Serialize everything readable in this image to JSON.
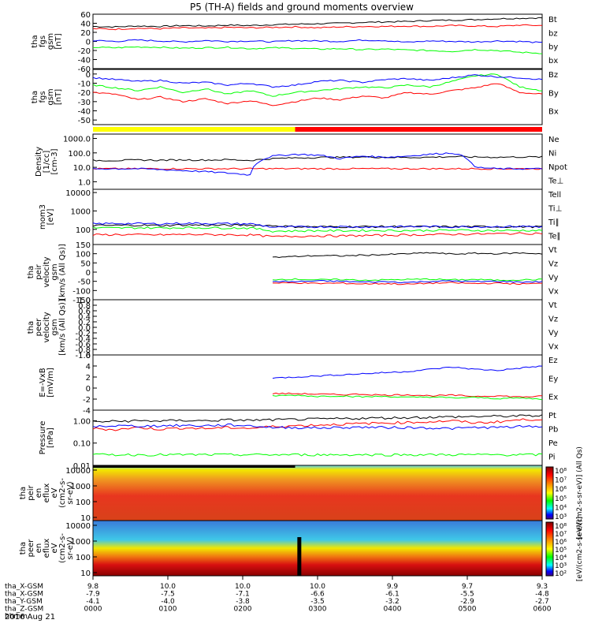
{
  "title": "P5 (TH-A) fields and ground moments overview",
  "date_label": "2016 Aug 21",
  "colors": {
    "black": "#000000",
    "red": "#ff0000",
    "green": "#00ff00",
    "blue": "#0000ff",
    "yellow": "#ffff00"
  },
  "xaxis": {
    "tick_fracs": [
      0,
      0.2,
      0.4,
      0.6,
      0.8,
      1.0
    ],
    "rows": [
      {
        "label": "tha_X-GSM",
        "values": [
          "9.8",
          "10.0",
          "10.0",
          "10.0",
          "9.9",
          "9.7",
          "9.3"
        ]
      },
      {
        "label": "tha_X-GSM",
        "values": [
          "-7.9",
          "-7.5",
          "-7.1",
          "-6.6",
          "-6.1",
          "-5.5",
          "-4.8"
        ]
      },
      {
        "label": "tha_Y-GSM",
        "values": [
          "-4.1",
          "-4.0",
          "-3.8",
          "-3.5",
          "-3.2",
          "-2.9",
          "-2.7"
        ]
      },
      {
        "label": "tha_Z-GSM",
        "values": [
          "0000",
          "0100",
          "0200",
          "0300",
          "0400",
          "0500",
          "0600"
        ]
      }
    ],
    "last_row_label": "hhmm"
  },
  "chart_data": [
    {
      "type": "line",
      "id": "p1",
      "ylabel_lines": [
        "tha",
        "fgs",
        "gsm",
        "[nT]"
      ],
      "ylim": [
        -60,
        60
      ],
      "ticks": [
        "60",
        "40",
        "20",
        "0",
        "-20",
        "-40",
        "-60"
      ],
      "tick_vals": [
        60,
        40,
        20,
        0,
        -20,
        -40,
        -60
      ],
      "series": [
        {
          "name": "Bt",
          "color": "black",
          "values": [
            33,
            32,
            34,
            33,
            35,
            34,
            36,
            35,
            37,
            38,
            39,
            40,
            42,
            43,
            44,
            46,
            47,
            48,
            50,
            51,
            52
          ]
        },
        {
          "name": "bz",
          "color": "red",
          "values": [
            28,
            27,
            29,
            28,
            30,
            29,
            31,
            30,
            31,
            32,
            30,
            32,
            33,
            33,
            34,
            33,
            35,
            34,
            33,
            36,
            35
          ]
        },
        {
          "name": "by",
          "color": "blue",
          "values": [
            2,
            0,
            3,
            1,
            -1,
            2,
            0,
            1,
            -1,
            2,
            1,
            0,
            3,
            2,
            -2,
            1,
            0,
            -1,
            1,
            0,
            -3
          ]
        },
        {
          "name": "bx",
          "color": "green",
          "values": [
            -13,
            -14,
            -12,
            -13,
            -15,
            -14,
            -13,
            -16,
            -14,
            -15,
            -17,
            -16,
            -18,
            -17,
            -19,
            -20,
            -22,
            -18,
            -20,
            -24,
            -26
          ]
        }
      ]
    },
    {
      "type": "line",
      "id": "p2",
      "ylabel_lines": [
        "tha",
        "fgs",
        "gsm",
        "[nT]"
      ],
      "ylim": [
        -55,
        5
      ],
      "ticks": [
        "0",
        "-10",
        "-20",
        "-30",
        "-40",
        "-50"
      ],
      "tick_vals": [
        0,
        -10,
        -20,
        -30,
        -40,
        -50
      ],
      "series": [
        {
          "name": "Bz",
          "color": "red",
          "values": [
            -20,
            -22,
            -28,
            -25,
            -30,
            -27,
            -32,
            -29,
            -34,
            -30,
            -26,
            -28,
            -24,
            -26,
            -20,
            -22,
            -18,
            -15,
            -10,
            -20,
            -22
          ]
        },
        {
          "name": "By",
          "color": "green",
          "values": [
            -12,
            -15,
            -18,
            -14,
            -20,
            -16,
            -22,
            -18,
            -24,
            -20,
            -18,
            -16,
            -14,
            -15,
            -12,
            -14,
            -8,
            -2,
            0,
            -14,
            -18
          ]
        },
        {
          "name": "Bx",
          "color": "blue",
          "values": [
            -4,
            -6,
            -8,
            -7,
            -10,
            -9,
            -12,
            -10,
            -14,
            -12,
            -8,
            -7,
            -9,
            -6,
            -5,
            -7,
            -4,
            -1,
            -3,
            -4,
            -6
          ]
        }
      ]
    },
    {
      "type": "line",
      "id": "p3",
      "ylabel_lines": [
        "Density",
        "[1/cc]",
        "[cm-3]"
      ],
      "ylim": [
        0.3,
        2000
      ],
      "log": true,
      "ticks": [
        "1000.0",
        "100.0",
        "10.0",
        "1.0"
      ],
      "tick_vals": [
        1000,
        100,
        10,
        1
      ],
      "series": [
        {
          "name": "Ne",
          "color": "red",
          "values": [
            8,
            8,
            8,
            8,
            8,
            8,
            8,
            8,
            8,
            8,
            8,
            8,
            8,
            8,
            8,
            8,
            8,
            8,
            8,
            8,
            8
          ]
        },
        {
          "name": "Ni",
          "color": "black",
          "values": [
            30,
            30,
            32,
            31,
            33,
            32,
            34,
            30,
            40,
            45,
            48,
            50,
            52,
            50,
            48,
            50,
            55,
            52,
            50,
            52,
            52
          ]
        },
        {
          "name": "Npot",
          "color": "blue",
          "values": [
            8,
            8,
            8,
            7,
            6,
            5,
            4,
            3,
            60,
            80,
            70,
            40,
            60,
            50,
            60,
            80,
            100,
            10,
            8,
            8,
            8
          ]
        },
        {
          "name": "Te⊥",
          "color": "red",
          "values": []
        }
      ]
    },
    {
      "type": "line",
      "id": "p4",
      "ylabel_lines": [
        "mom3",
        "[eV]"
      ],
      "ylim": [
        15,
        15000
      ],
      "log": true,
      "ticks": [
        "10000",
        "1000",
        "100"
      ],
      "tick_vals": [
        10000,
        1000,
        100
      ],
      "series": [
        {
          "name": "Tell",
          "color": "black",
          "values": [
            160,
            165,
            170,
            160,
            175,
            170,
            165,
            170,
            160,
            140,
            140,
            138,
            140,
            142,
            140,
            138,
            140,
            142,
            140,
            138,
            140
          ]
        },
        {
          "name": "Ti⊥",
          "color": "blue",
          "values": [
            200,
            210,
            205,
            200,
            215,
            210,
            205,
            200,
            130,
            135,
            138,
            140,
            136,
            138,
            140,
            142,
            138,
            140,
            142,
            145,
            140
          ]
        },
        {
          "name": "Ti∥",
          "color": "green",
          "values": [
            120,
            118,
            122,
            120,
            124,
            122,
            120,
            118,
            80,
            82,
            85,
            84,
            86,
            88,
            86,
            88,
            90,
            88,
            86,
            88,
            86
          ]
        },
        {
          "name": "Te∥",
          "color": "red",
          "values": [
            50,
            52,
            51,
            50,
            53,
            52,
            51,
            50,
            40,
            42,
            45,
            44,
            46,
            48,
            50,
            52,
            54,
            56,
            58,
            60,
            62
          ]
        }
      ]
    },
    {
      "type": "line",
      "id": "p5",
      "ylabel_lines": [
        "tha",
        "peir",
        "velocity",
        "gsm",
        "[km/s (All Qs)]"
      ],
      "ylim": [
        -150,
        150
      ],
      "ticks": [
        "150",
        "100",
        "50",
        "0",
        "-50",
        "-100",
        "-150"
      ],
      "tick_vals": [
        150,
        100,
        50,
        0,
        -50,
        -100,
        -150
      ],
      "series": [
        {
          "name": "Vt",
          "color": "black",
          "values": [
            null,
            null,
            null,
            null,
            null,
            null,
            null,
            null,
            80,
            85,
            90,
            88,
            92,
            95,
            100,
            105,
            98,
            102,
            100,
            104,
            100
          ]
        },
        {
          "name": "Vz",
          "color": "red",
          "values": [
            null,
            null,
            null,
            null,
            null,
            null,
            null,
            null,
            -60,
            -58,
            -62,
            -60,
            -64,
            -62,
            -66,
            -60,
            -58,
            -62,
            -60,
            -64,
            -62
          ]
        },
        {
          "name": "Vy",
          "color": "green",
          "values": [
            null,
            null,
            null,
            null,
            null,
            null,
            null,
            null,
            -40,
            -38,
            -42,
            -40,
            -44,
            -42,
            -40,
            -38,
            -42,
            -40,
            -44,
            -42,
            -40
          ]
        },
        {
          "name": "Vx",
          "color": "blue",
          "values": [
            null,
            null,
            null,
            null,
            null,
            null,
            null,
            null,
            -50,
            -52,
            -48,
            -50,
            -54,
            -52,
            -56,
            -50,
            -48,
            -52,
            -50,
            -54,
            -52
          ]
        }
      ]
    },
    {
      "type": "line",
      "id": "p6",
      "ylabel_lines": [
        "tha",
        "peer",
        "velocity",
        "gsm",
        "[km/s (All Qs)]"
      ],
      "ylim": [
        -1,
        1
      ],
      "ticks": [
        "1.0",
        "0.8",
        "0.6",
        "0.4",
        "0.2",
        "0.0",
        "-0.2",
        "-0.4",
        "-0.6",
        "-0.8",
        "-1.0"
      ],
      "tick_vals": [
        1,
        0.8,
        0.6,
        0.4,
        0.2,
        0,
        -0.2,
        -0.4,
        -0.6,
        -0.8,
        -1
      ],
      "series": [
        {
          "name": "Vt",
          "color": "black",
          "values": []
        },
        {
          "name": "Vz",
          "color": "red",
          "values": []
        },
        {
          "name": "Vy",
          "color": "green",
          "values": []
        },
        {
          "name": "Vx",
          "color": "blue",
          "values": []
        }
      ]
    },
    {
      "type": "line",
      "id": "p7",
      "ylabel_lines": [
        "E=-VxB",
        "[mV/m]"
      ],
      "ylim": [
        -4,
        6
      ],
      "ticks": [
        "6",
        "4",
        "2",
        "0",
        "-2",
        "-4"
      ],
      "tick_vals": [
        6,
        4,
        2,
        0,
        -2,
        -4
      ],
      "series": [
        {
          "name": "Ez",
          "color": "red",
          "values": [
            null,
            null,
            null,
            null,
            null,
            null,
            null,
            null,
            -1,
            -1,
            -1.1,
            -1.2,
            -1.1,
            -1.3,
            -1.2,
            -1.4,
            -1.3,
            -1.5,
            -1.4,
            -1.6,
            -1.5
          ]
        },
        {
          "name": "Ey",
          "color": "green",
          "values": [
            null,
            null,
            null,
            null,
            null,
            null,
            null,
            null,
            -1.4,
            -1.3,
            -1.5,
            -1.4,
            -1.6,
            -1.5,
            -1.7,
            -1.6,
            -1.8,
            -1.7,
            -1.9,
            -1.8,
            -2
          ]
        },
        {
          "name": "Ex",
          "color": "blue",
          "values": [
            null,
            null,
            null,
            null,
            null,
            null,
            null,
            null,
            1.8,
            2.0,
            2.2,
            2.4,
            2.6,
            2.8,
            3.0,
            3.4,
            3.8,
            3.4,
            3.2,
            3.6,
            4.0
          ]
        }
      ]
    },
    {
      "type": "line",
      "id": "p8",
      "ylabel_lines": [
        "Pressure",
        "[nPa]"
      ],
      "ylim": [
        0.01,
        3
      ],
      "log": true,
      "ticks": [
        "1.00",
        "0.10",
        "0.01"
      ],
      "tick_vals": [
        1,
        0.1,
        0.01
      ],
      "series": [
        {
          "name": "Pt",
          "color": "black",
          "values": [
            0.9,
            0.95,
            1.0,
            0.98,
            1.05,
            1.0,
            1.1,
            1.05,
            1.1,
            1.15,
            1.2,
            1.25,
            1.3,
            1.35,
            1.4,
            1.45,
            1.5,
            1.55,
            1.6,
            1.65,
            1.7
          ]
        },
        {
          "name": "Pb",
          "color": "red",
          "values": [
            0.45,
            0.4,
            0.5,
            0.42,
            0.48,
            0.45,
            0.5,
            0.46,
            0.55,
            0.6,
            0.65,
            0.7,
            0.75,
            0.8,
            0.85,
            0.9,
            1.0,
            0.8,
            0.9,
            1.1,
            1.2
          ]
        },
        {
          "name": "Pe",
          "color": "green",
          "values": [
            0.03,
            0.03,
            0.03,
            0.03,
            0.03,
            0.03,
            0.03,
            0.03,
            0.03,
            0.03,
            0.03,
            0.03,
            0.03,
            0.03,
            0.03,
            0.03,
            0.03,
            0.03,
            0.03,
            0.03,
            0.03
          ]
        },
        {
          "name": "Pi",
          "color": "blue",
          "values": [
            0.55,
            0.6,
            0.58,
            0.6,
            0.62,
            0.6,
            0.65,
            0.6,
            0.5,
            0.5,
            0.48,
            0.5,
            0.52,
            0.5,
            0.5,
            0.48,
            0.45,
            0.5,
            0.5,
            0.55,
            0.55
          ]
        }
      ]
    },
    {
      "type": "heatmap",
      "id": "p9",
      "ylabel_lines": [
        "tha",
        "peir",
        "en",
        "eflux",
        "eV",
        "(cm2-s-",
        "sr-eV)"
      ],
      "ticks": [
        "10000",
        "1000",
        "100",
        "10"
      ]
    },
    {
      "type": "heatmap",
      "id": "p10",
      "ylabel_lines": [
        "tha",
        "peer",
        "en",
        "eflux",
        "eV",
        "(cm2-s-",
        "sr-eV)"
      ],
      "ticks": [
        "10000",
        "1000",
        "100",
        "10"
      ]
    }
  ],
  "colorbar_top": {
    "ticks": [
      "10⁸",
      "10⁷",
      "10⁶",
      "10⁵",
      "10⁴",
      "10³"
    ],
    "label": "[eV/(cm2-s-sr-eV)] (All Qs)"
  },
  "colorbar_bottom": {
    "ticks": [
      "10⁸",
      "10⁷",
      "10⁶",
      "10⁵",
      "10⁴",
      "10³",
      "10²"
    ],
    "label": "[eV/(cm2-s-sr-eV)]"
  }
}
